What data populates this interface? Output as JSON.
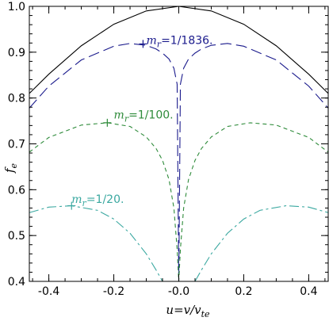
{
  "chart_data": {
    "type": "line",
    "xlabel": {
      "prefix": "u=v/v",
      "sub": "te"
    },
    "ylabel": {
      "main": "f",
      "sub": "e"
    },
    "xlim": [
      -0.46,
      0.46
    ],
    "ylim": [
      0.4,
      1.0
    ],
    "x_ticks": [
      -0.4,
      -0.2,
      -0.0,
      0.2,
      0.4
    ],
    "x_tick_labels": [
      "-0.4",
      "-0.2",
      "-0.0",
      "0.2",
      "0.4"
    ],
    "y_ticks": [
      0.4,
      0.5,
      0.6,
      0.7,
      0.8,
      0.9,
      1.0
    ],
    "y_tick_labels": [
      "0.4",
      "0.5",
      "0.6",
      "0.7",
      "0.8",
      "0.9",
      "1.0"
    ],
    "grid": false,
    "legend": "none",
    "series": [
      {
        "style": "solid",
        "color": "#000000",
        "x": [
          -0.46,
          -0.4,
          -0.3,
          -0.2,
          -0.1,
          0.0,
          0.1,
          0.2,
          0.3,
          0.4,
          0.46
        ],
        "y": [
          0.81,
          0.852,
          0.914,
          0.961,
          0.99,
          1.0,
          0.99,
          0.961,
          0.914,
          0.852,
          0.81
        ]
      },
      {
        "style": "long-dash",
        "color": "#1a1a8c",
        "x": [
          -0.46,
          -0.4,
          -0.3,
          -0.2,
          -0.15,
          -0.1,
          -0.07,
          -0.05,
          -0.03,
          -0.015,
          -0.005,
          0.0,
          0.005,
          0.015,
          0.03,
          0.05,
          0.07,
          0.1,
          0.15,
          0.2,
          0.3,
          0.4,
          0.46
        ],
        "y": [
          0.778,
          0.826,
          0.883,
          0.913,
          0.919,
          0.915,
          0.907,
          0.898,
          0.885,
          0.865,
          0.83,
          0.4,
          0.83,
          0.865,
          0.885,
          0.898,
          0.907,
          0.915,
          0.919,
          0.913,
          0.883,
          0.826,
          0.778
        ]
      },
      {
        "style": "short-dash",
        "color": "#2e8b3a",
        "x": [
          -0.46,
          -0.4,
          -0.3,
          -0.22,
          -0.15,
          -0.1,
          -0.07,
          -0.05,
          -0.03,
          -0.015,
          -0.005,
          0.0,
          0.005,
          0.015,
          0.03,
          0.05,
          0.07,
          0.1,
          0.15,
          0.22,
          0.3,
          0.4,
          0.46
        ],
        "y": [
          0.682,
          0.714,
          0.741,
          0.746,
          0.738,
          0.715,
          0.69,
          0.664,
          0.622,
          0.56,
          0.47,
          0.4,
          0.47,
          0.56,
          0.622,
          0.664,
          0.69,
          0.715,
          0.738,
          0.746,
          0.741,
          0.714,
          0.682
        ]
      },
      {
        "style": "dash-dot",
        "color": "#3aa8a0",
        "x": [
          -0.46,
          -0.4,
          -0.33,
          -0.25,
          -0.2,
          -0.15,
          -0.1,
          -0.07,
          -0.05,
          -0.03,
          -0.015,
          0.0,
          0.015,
          0.03,
          0.05,
          0.07,
          0.1,
          0.15,
          0.2,
          0.25,
          0.33,
          0.4,
          0.46
        ],
        "y": [
          0.55,
          0.562,
          0.565,
          0.555,
          0.536,
          0.505,
          0.46,
          0.425,
          0.4,
          0.4,
          0.4,
          0.4,
          0.4,
          0.4,
          0.4,
          0.425,
          0.46,
          0.505,
          0.536,
          0.555,
          0.565,
          0.562,
          0.55
        ]
      }
    ],
    "annotations": [
      {
        "prefix": "m",
        "sub": "r",
        "text": "=1/1836.",
        "color": "#1a1a8c",
        "x": -0.1,
        "y": 0.918,
        "marker": [
          -0.11,
          0.918
        ]
      },
      {
        "prefix": "m",
        "sub": "r",
        "text": "=1/100.",
        "color": "#2e8b3a",
        "x": -0.2,
        "y": 0.755,
        "marker": [
          -0.22,
          0.746
        ]
      },
      {
        "prefix": "m",
        "sub": "r",
        "text": "=1/20.",
        "color": "#3aa8a0",
        "x": -0.33,
        "y": 0.571,
        "marker": [
          -0.33,
          0.565
        ]
      }
    ]
  }
}
